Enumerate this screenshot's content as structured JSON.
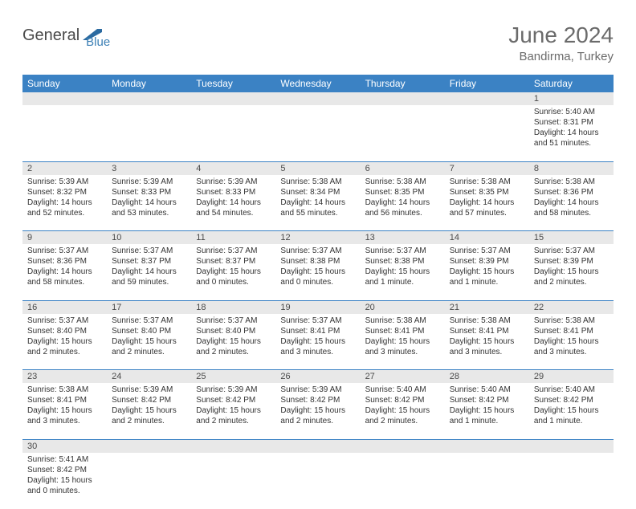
{
  "logo": {
    "text1": "General",
    "text2": "Blue"
  },
  "title": "June 2024",
  "subtitle": "Bandirma, Turkey",
  "header_bg": "#3b82c4",
  "header_fg": "#ffffff",
  "daynum_bg": "#e8e8e8",
  "border_color": "#3b82c4",
  "days": [
    "Sunday",
    "Monday",
    "Tuesday",
    "Wednesday",
    "Thursday",
    "Friday",
    "Saturday"
  ],
  "weeks": [
    {
      "nums": [
        "",
        "",
        "",
        "",
        "",
        "",
        "1"
      ],
      "cells": [
        null,
        null,
        null,
        null,
        null,
        null,
        {
          "sunrise": "Sunrise: 5:40 AM",
          "sunset": "Sunset: 8:31 PM",
          "daylight": "Daylight: 14 hours and 51 minutes."
        }
      ]
    },
    {
      "nums": [
        "2",
        "3",
        "4",
        "5",
        "6",
        "7",
        "8"
      ],
      "cells": [
        {
          "sunrise": "Sunrise: 5:39 AM",
          "sunset": "Sunset: 8:32 PM",
          "daylight": "Daylight: 14 hours and 52 minutes."
        },
        {
          "sunrise": "Sunrise: 5:39 AM",
          "sunset": "Sunset: 8:33 PM",
          "daylight": "Daylight: 14 hours and 53 minutes."
        },
        {
          "sunrise": "Sunrise: 5:39 AM",
          "sunset": "Sunset: 8:33 PM",
          "daylight": "Daylight: 14 hours and 54 minutes."
        },
        {
          "sunrise": "Sunrise: 5:38 AM",
          "sunset": "Sunset: 8:34 PM",
          "daylight": "Daylight: 14 hours and 55 minutes."
        },
        {
          "sunrise": "Sunrise: 5:38 AM",
          "sunset": "Sunset: 8:35 PM",
          "daylight": "Daylight: 14 hours and 56 minutes."
        },
        {
          "sunrise": "Sunrise: 5:38 AM",
          "sunset": "Sunset: 8:35 PM",
          "daylight": "Daylight: 14 hours and 57 minutes."
        },
        {
          "sunrise": "Sunrise: 5:38 AM",
          "sunset": "Sunset: 8:36 PM",
          "daylight": "Daylight: 14 hours and 58 minutes."
        }
      ]
    },
    {
      "nums": [
        "9",
        "10",
        "11",
        "12",
        "13",
        "14",
        "15"
      ],
      "cells": [
        {
          "sunrise": "Sunrise: 5:37 AM",
          "sunset": "Sunset: 8:36 PM",
          "daylight": "Daylight: 14 hours and 58 minutes."
        },
        {
          "sunrise": "Sunrise: 5:37 AM",
          "sunset": "Sunset: 8:37 PM",
          "daylight": "Daylight: 14 hours and 59 minutes."
        },
        {
          "sunrise": "Sunrise: 5:37 AM",
          "sunset": "Sunset: 8:37 PM",
          "daylight": "Daylight: 15 hours and 0 minutes."
        },
        {
          "sunrise": "Sunrise: 5:37 AM",
          "sunset": "Sunset: 8:38 PM",
          "daylight": "Daylight: 15 hours and 0 minutes."
        },
        {
          "sunrise": "Sunrise: 5:37 AM",
          "sunset": "Sunset: 8:38 PM",
          "daylight": "Daylight: 15 hours and 1 minute."
        },
        {
          "sunrise": "Sunrise: 5:37 AM",
          "sunset": "Sunset: 8:39 PM",
          "daylight": "Daylight: 15 hours and 1 minute."
        },
        {
          "sunrise": "Sunrise: 5:37 AM",
          "sunset": "Sunset: 8:39 PM",
          "daylight": "Daylight: 15 hours and 2 minutes."
        }
      ]
    },
    {
      "nums": [
        "16",
        "17",
        "18",
        "19",
        "20",
        "21",
        "22"
      ],
      "cells": [
        {
          "sunrise": "Sunrise: 5:37 AM",
          "sunset": "Sunset: 8:40 PM",
          "daylight": "Daylight: 15 hours and 2 minutes."
        },
        {
          "sunrise": "Sunrise: 5:37 AM",
          "sunset": "Sunset: 8:40 PM",
          "daylight": "Daylight: 15 hours and 2 minutes."
        },
        {
          "sunrise": "Sunrise: 5:37 AM",
          "sunset": "Sunset: 8:40 PM",
          "daylight": "Daylight: 15 hours and 2 minutes."
        },
        {
          "sunrise": "Sunrise: 5:37 AM",
          "sunset": "Sunset: 8:41 PM",
          "daylight": "Daylight: 15 hours and 3 minutes."
        },
        {
          "sunrise": "Sunrise: 5:38 AM",
          "sunset": "Sunset: 8:41 PM",
          "daylight": "Daylight: 15 hours and 3 minutes."
        },
        {
          "sunrise": "Sunrise: 5:38 AM",
          "sunset": "Sunset: 8:41 PM",
          "daylight": "Daylight: 15 hours and 3 minutes."
        },
        {
          "sunrise": "Sunrise: 5:38 AM",
          "sunset": "Sunset: 8:41 PM",
          "daylight": "Daylight: 15 hours and 3 minutes."
        }
      ]
    },
    {
      "nums": [
        "23",
        "24",
        "25",
        "26",
        "27",
        "28",
        "29"
      ],
      "cells": [
        {
          "sunrise": "Sunrise: 5:38 AM",
          "sunset": "Sunset: 8:41 PM",
          "daylight": "Daylight: 15 hours and 3 minutes."
        },
        {
          "sunrise": "Sunrise: 5:39 AM",
          "sunset": "Sunset: 8:42 PM",
          "daylight": "Daylight: 15 hours and 2 minutes."
        },
        {
          "sunrise": "Sunrise: 5:39 AM",
          "sunset": "Sunset: 8:42 PM",
          "daylight": "Daylight: 15 hours and 2 minutes."
        },
        {
          "sunrise": "Sunrise: 5:39 AM",
          "sunset": "Sunset: 8:42 PM",
          "daylight": "Daylight: 15 hours and 2 minutes."
        },
        {
          "sunrise": "Sunrise: 5:40 AM",
          "sunset": "Sunset: 8:42 PM",
          "daylight": "Daylight: 15 hours and 2 minutes."
        },
        {
          "sunrise": "Sunrise: 5:40 AM",
          "sunset": "Sunset: 8:42 PM",
          "daylight": "Daylight: 15 hours and 1 minute."
        },
        {
          "sunrise": "Sunrise: 5:40 AM",
          "sunset": "Sunset: 8:42 PM",
          "daylight": "Daylight: 15 hours and 1 minute."
        }
      ]
    },
    {
      "nums": [
        "30",
        "",
        "",
        "",
        "",
        "",
        ""
      ],
      "cells": [
        {
          "sunrise": "Sunrise: 5:41 AM",
          "sunset": "Sunset: 8:42 PM",
          "daylight": "Daylight: 15 hours and 0 minutes."
        },
        null,
        null,
        null,
        null,
        null,
        null
      ]
    }
  ]
}
